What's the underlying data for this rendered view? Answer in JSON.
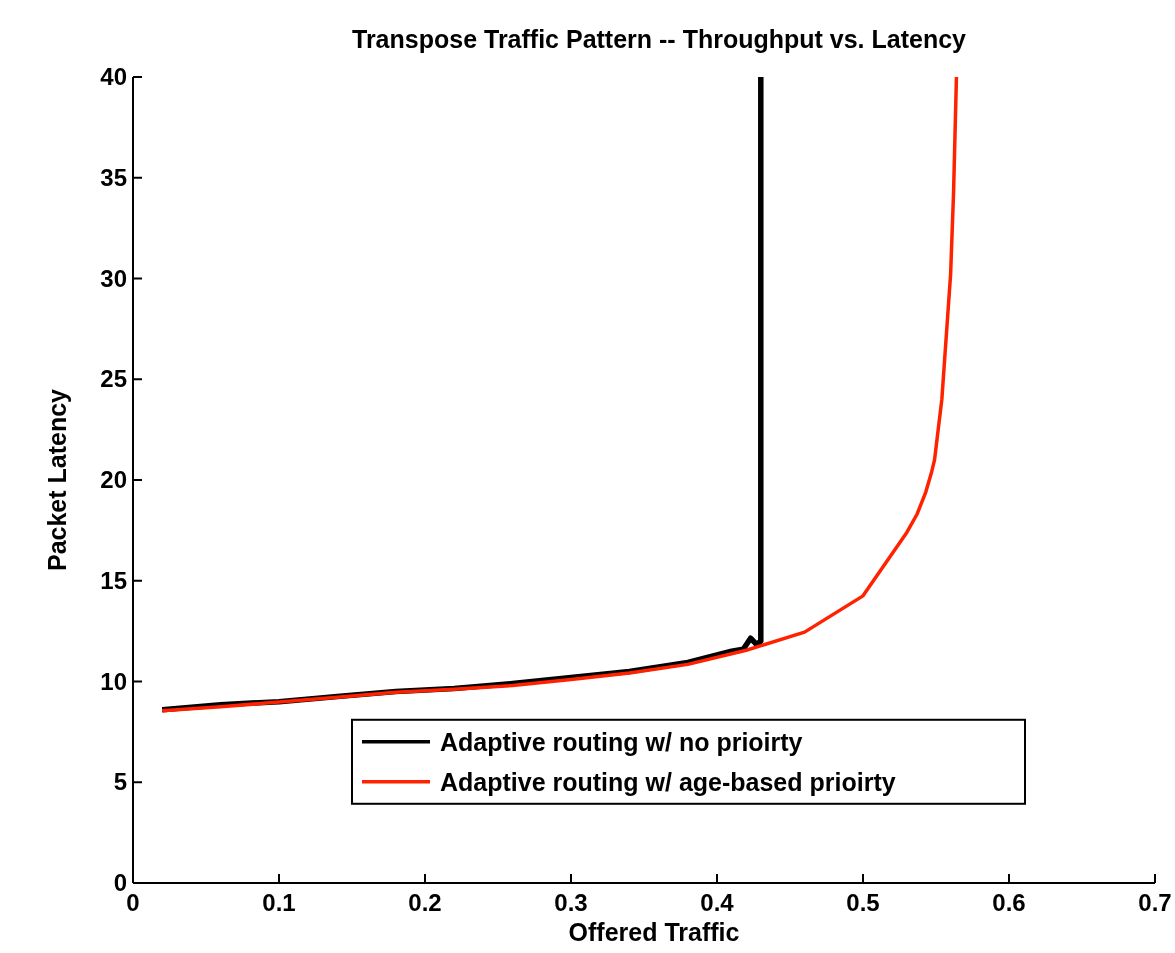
{
  "chart_data": {
    "type": "line",
    "title": "Transpose Traffic Pattern -- Throughput vs. Latency",
    "xlabel": "Offered Traffic",
    "ylabel": "Packet Latency",
    "xlim": [
      0,
      0.7
    ],
    "xticks": [
      0,
      0.1,
      0.2,
      0.3,
      0.4,
      0.5,
      0.6,
      0.7
    ],
    "ylim": [
      0,
      40
    ],
    "yticks": [
      0,
      5,
      10,
      15,
      20,
      25,
      30,
      35,
      40
    ],
    "grid": false,
    "legend": "bottom",
    "marker": "none",
    "line_style": "solid",
    "series": [
      {
        "name": "Adaptive routing w/ no prioirty",
        "color": "#000000",
        "x": [
          0.02,
          0.06,
          0.1,
          0.14,
          0.18,
          0.22,
          0.26,
          0.3,
          0.34,
          0.38,
          0.41,
          0.418,
          0.423,
          0.427,
          0.43,
          0.43
        ],
        "values": [
          8.6,
          8.85,
          9.0,
          9.25,
          9.5,
          9.65,
          9.9,
          10.2,
          10.5,
          10.95,
          11.5,
          11.6,
          12.15,
          11.85,
          12.0,
          40
        ]
      },
      {
        "name": "Adaptive routing w/ age-based prioirty",
        "color": "#ff2200",
        "x": [
          0.02,
          0.06,
          0.1,
          0.14,
          0.18,
          0.22,
          0.26,
          0.3,
          0.34,
          0.38,
          0.42,
          0.46,
          0.5,
          0.53,
          0.537,
          0.543,
          0.547,
          0.549,
          0.554,
          0.56,
          0.562,
          0.564
        ],
        "values": [
          8.55,
          8.75,
          8.98,
          9.22,
          9.47,
          9.62,
          9.8,
          10.1,
          10.42,
          10.85,
          11.55,
          12.45,
          14.25,
          17.4,
          18.3,
          19.4,
          20.4,
          21.0,
          24.0,
          30.2,
          34.2,
          40
        ]
      }
    ]
  }
}
